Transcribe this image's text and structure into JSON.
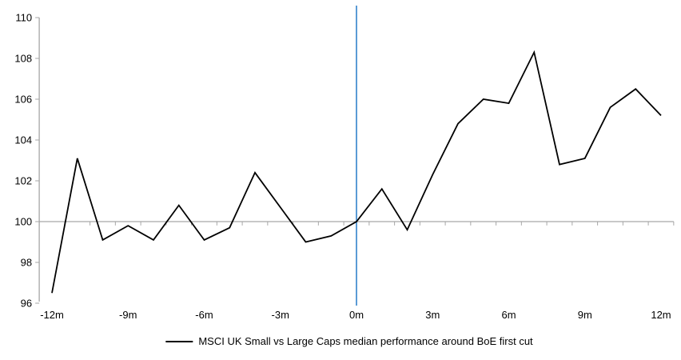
{
  "chart_data": {
    "type": "line",
    "title": "",
    "xlabel": "",
    "ylabel": "",
    "x": [
      -12,
      -11,
      -10,
      -9,
      -8,
      -7,
      -6,
      -5,
      -4,
      -3,
      -2,
      -1,
      0,
      1,
      2,
      3,
      4,
      5,
      6,
      7,
      8,
      9,
      10,
      11,
      12
    ],
    "series": [
      {
        "name": "MSCI UK Small vs Large Caps median performance around BoE first cut",
        "values": [
          96.5,
          103.1,
          99.1,
          99.8,
          99.1,
          100.8,
          99.1,
          99.7,
          102.4,
          100.7,
          99.0,
          99.3,
          100.0,
          101.6,
          99.6,
          102.3,
          104.8,
          106.0,
          105.8,
          108.3,
          102.8,
          103.1,
          105.6,
          106.5,
          105.2
        ]
      }
    ],
    "xlim": [
      -12.5,
      12.5
    ],
    "ylim": [
      96,
      110
    ],
    "baseline": 100,
    "event_line_x": 0,
    "grid": false,
    "legend_position": "bottom",
    "xticks": [
      {
        "value": -12,
        "label": "-12m"
      },
      {
        "value": -9,
        "label": "-9m"
      },
      {
        "value": -6,
        "label": "-6m"
      },
      {
        "value": -3,
        "label": "-3m"
      },
      {
        "value": 0,
        "label": "0m"
      },
      {
        "value": 3,
        "label": "3m"
      },
      {
        "value": 6,
        "label": "6m"
      },
      {
        "value": 9,
        "label": "9m"
      },
      {
        "value": 12,
        "label": "12m"
      }
    ],
    "ytick_values": [
      96,
      98,
      100,
      102,
      104,
      106,
      108,
      110
    ],
    "ytick_labels": [
      "96",
      "98",
      "100",
      "102",
      "104",
      "106",
      "108",
      "110"
    ],
    "minor_xtick_interval_months": 1,
    "colors": {
      "series": "#000000",
      "event_line": "#5b9bd5",
      "axis": "#a6a6a6",
      "text": "#000000"
    }
  },
  "legend": {
    "label": "MSCI UK Small vs Large Caps median performance around BoE first cut"
  }
}
